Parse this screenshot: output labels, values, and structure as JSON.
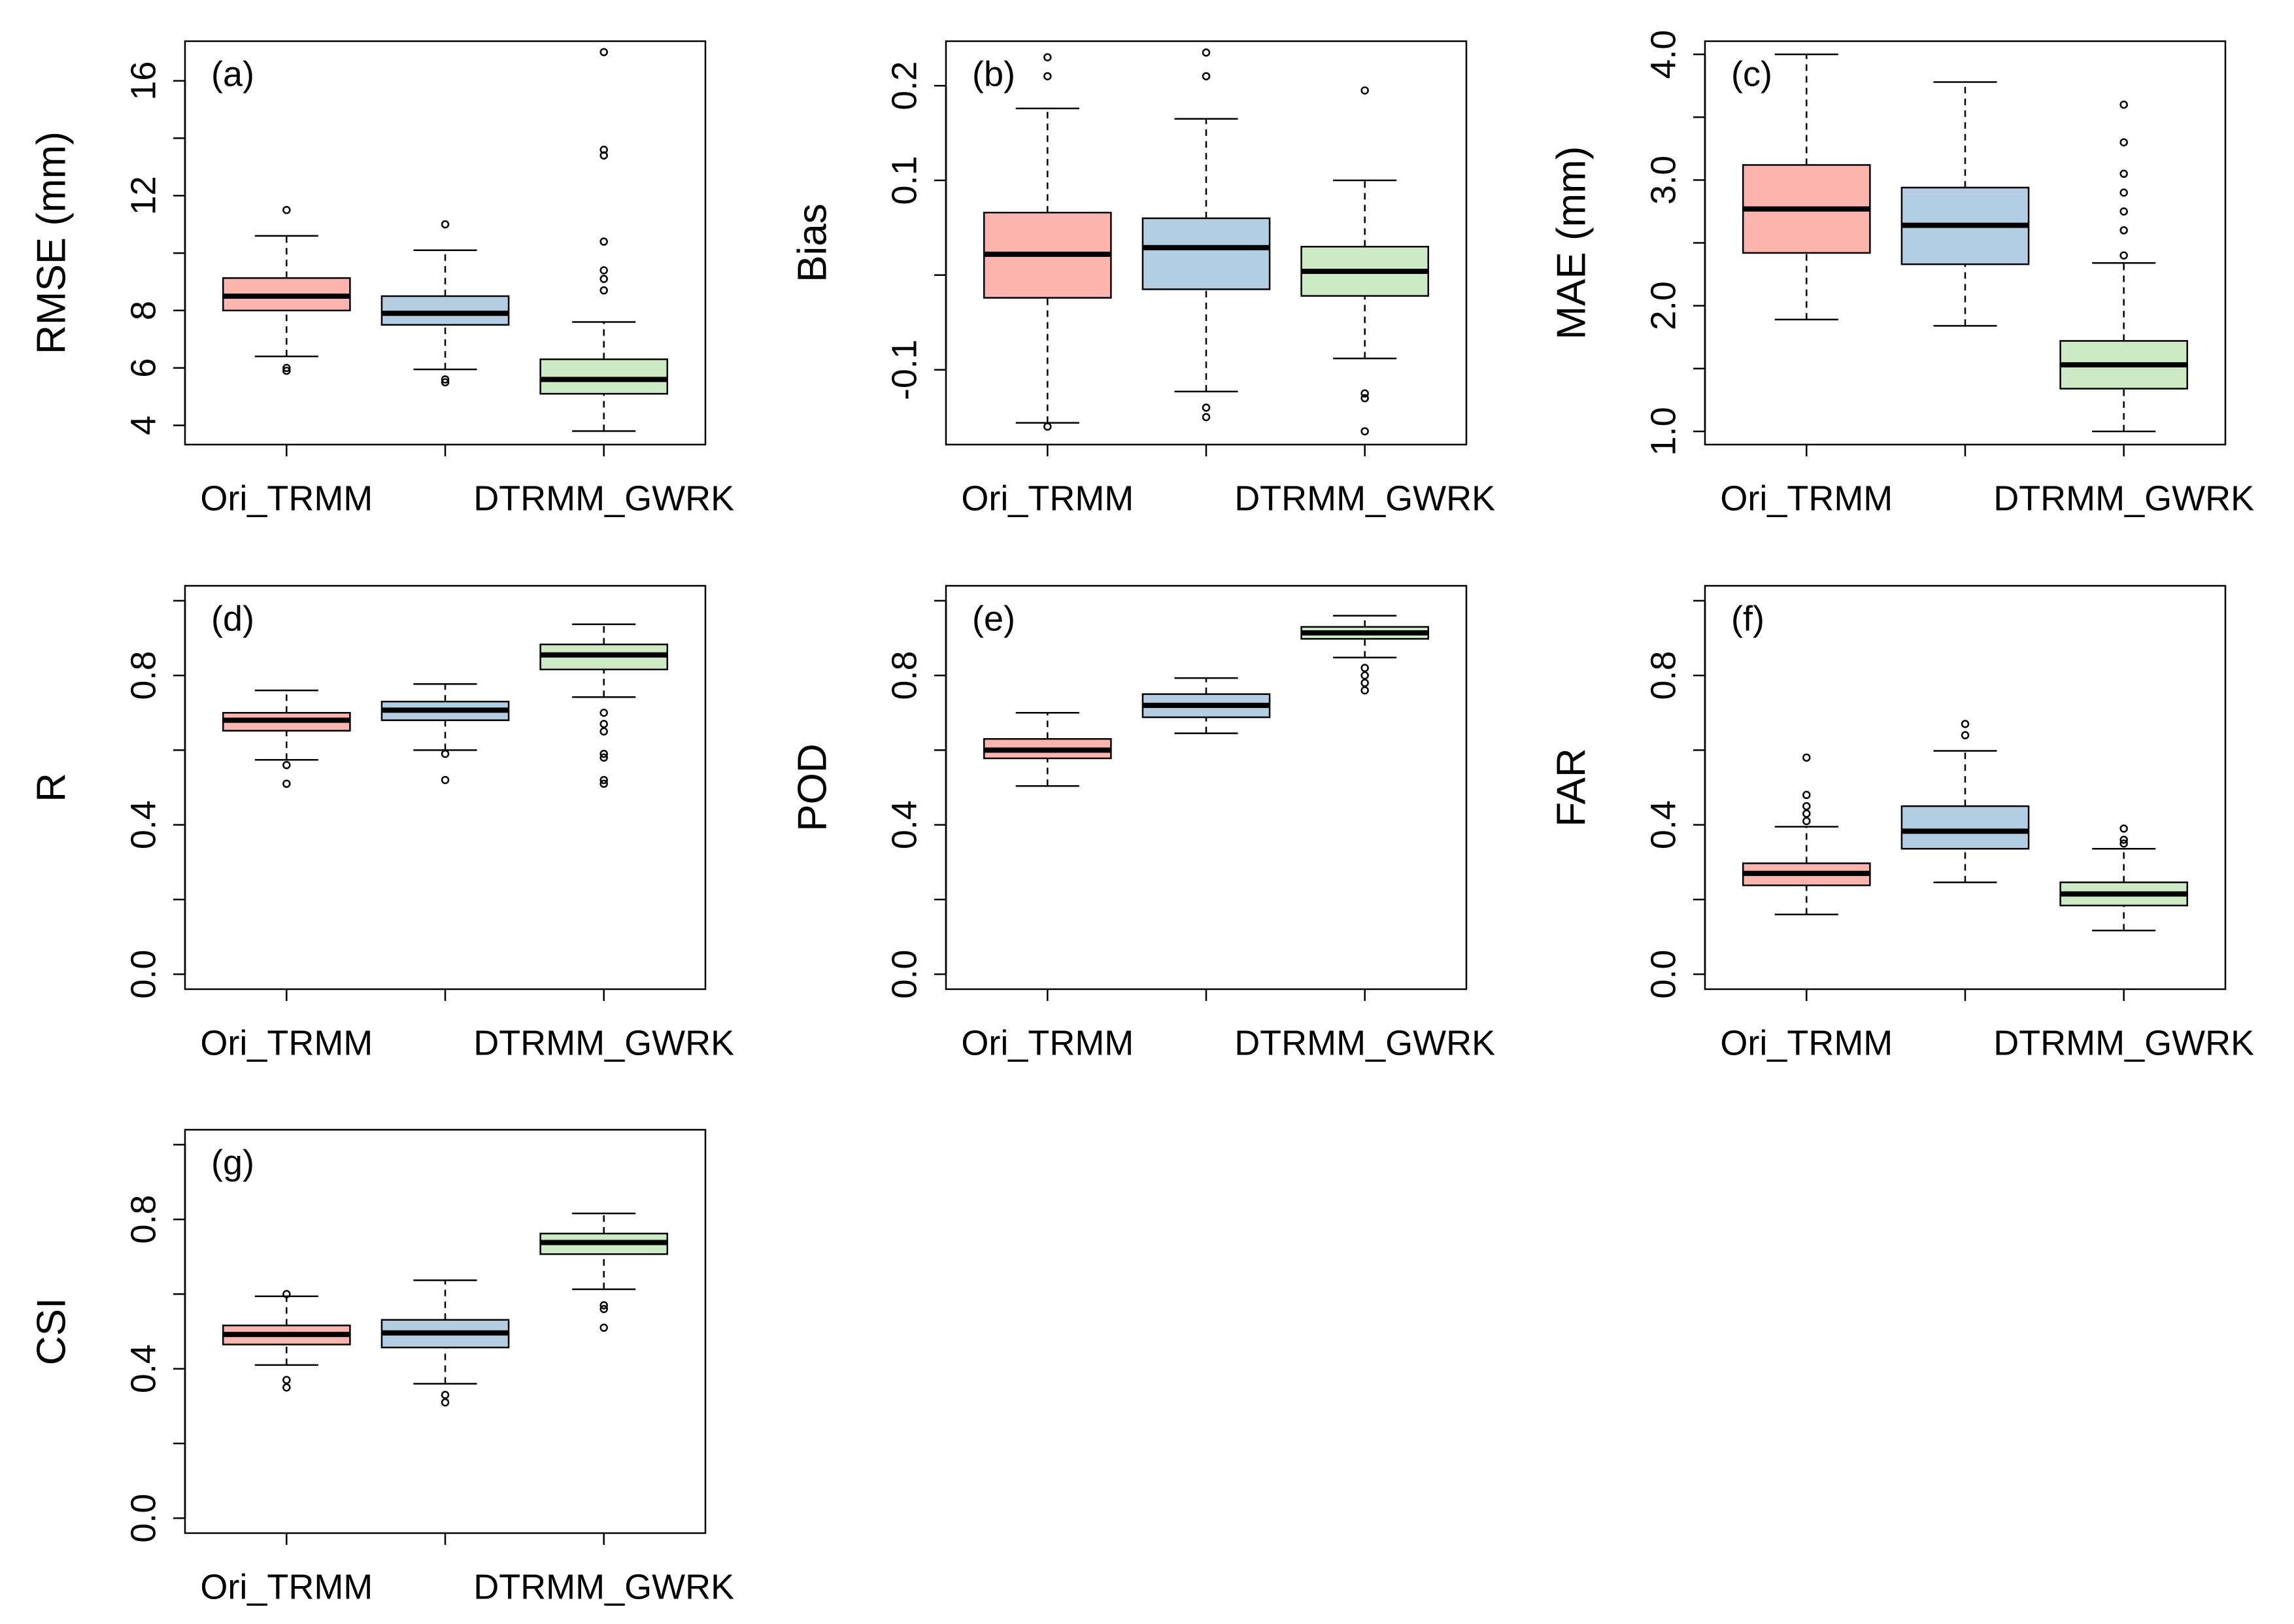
{
  "chart_data": [
    {
      "type": "box",
      "title": "(a)",
      "y_label": "RMSE (mm)",
      "categories": [
        "Ori_TRMM",
        null,
        "DTRMM_GWRK"
      ],
      "colors": [
        "#fbb4ae",
        "#b3cde3",
        "#ccebc5"
      ],
      "ylim": [
        3.33,
        17.38
      ],
      "yticks": [
        4,
        6,
        8,
        {
          "value": 10,
          "label": null
        },
        12,
        {
          "value": 14,
          "label": null
        },
        16
      ],
      "boxes": [
        {
          "whislo": 6.4,
          "q1": 8.0,
          "med": 8.5,
          "q3": 9.13,
          "whishi": 10.6,
          "fliers": [
            11.5,
            6.0,
            5.9
          ]
        },
        {
          "whislo": 5.95,
          "q1": 7.5,
          "med": 7.9,
          "q3": 8.5,
          "whishi": 10.1,
          "fliers": [
            11.0,
            5.6,
            5.5
          ]
        },
        {
          "whislo": 3.8,
          "q1": 5.1,
          "med": 5.6,
          "q3": 6.3,
          "whishi": 7.6,
          "fliers": [
            8.7,
            9.1,
            9.4,
            10.4,
            13.4,
            13.6,
            17.0
          ]
        }
      ]
    },
    {
      "type": "box",
      "title": "(b)",
      "y_label": "Bias",
      "categories": [
        "Ori_TRMM",
        null,
        "DTRMM_GWRK"
      ],
      "colors": [
        "#fbb4ae",
        "#b3cde3",
        "#ccebc5"
      ],
      "ylim": [
        -0.179,
        0.247
      ],
      "yticks": [
        -0.1,
        {
          "value": 0,
          "label": null
        },
        0.1,
        0.2
      ],
      "boxes": [
        {
          "whislo": -0.156,
          "q1": -0.024,
          "med": 0.022,
          "q3": 0.066,
          "whishi": 0.176,
          "fliers": [
            0.23,
            0.21,
            -0.16
          ]
        },
        {
          "whislo": -0.123,
          "q1": -0.015,
          "med": 0.029,
          "q3": 0.06,
          "whishi": 0.165,
          "fliers": [
            0.235,
            0.21,
            -0.14,
            -0.15
          ]
        },
        {
          "whislo": -0.088,
          "q1": -0.022,
          "med": 0.004,
          "q3": 0.03,
          "whishi": 0.1,
          "fliers": [
            0.195,
            -0.125,
            -0.13,
            -0.165
          ]
        }
      ]
    },
    {
      "type": "box",
      "title": "(c)",
      "y_label": "MAE (mm)",
      "categories": [
        "Ori_TRMM",
        null,
        "DTRMM_GWRK"
      ],
      "colors": [
        "#fbb4ae",
        "#b3cde3",
        "#ccebc5"
      ],
      "ylim": [
        0.895,
        4.105
      ],
      "yticks": [
        {
          "value": 1,
          "label": "1.0"
        },
        {
          "value": 1.5,
          "label": null
        },
        {
          "value": 2,
          "label": "2.0"
        },
        {
          "value": 2.5,
          "label": null
        },
        {
          "value": 3,
          "label": "3.0"
        },
        {
          "value": 3.5,
          "label": null
        },
        {
          "value": 4,
          "label": "4.0"
        }
      ],
      "boxes": [
        {
          "whislo": 1.89,
          "q1": 2.42,
          "med": 2.77,
          "q3": 3.12,
          "whishi": 4.0,
          "fliers": []
        },
        {
          "whislo": 1.84,
          "q1": 2.33,
          "med": 2.64,
          "q3": 2.94,
          "whishi": 3.78,
          "fliers": []
        },
        {
          "whislo": 1.0,
          "q1": 1.34,
          "med": 1.53,
          "q3": 1.72,
          "whishi": 2.34,
          "fliers": [
            2.4,
            2.6,
            2.75,
            2.9,
            3.05,
            3.3,
            3.6
          ]
        }
      ]
    },
    {
      "type": "box",
      "title": "(d)",
      "y_label": "R",
      "categories": [
        "Ori_TRMM",
        null,
        "DTRMM_GWRK"
      ],
      "colors": [
        "#fbb4ae",
        "#b3cde3",
        "#ccebc5"
      ],
      "ylim": [
        -0.04,
        1.04
      ],
      "yticks": [
        {
          "value": 0,
          "label": "0.0"
        },
        {
          "value": 0.2,
          "label": null
        },
        0.4,
        {
          "value": 0.6,
          "label": null
        },
        0.8,
        {
          "value": 1,
          "label": null
        }
      ],
      "boxes": [
        {
          "whislo": 0.574,
          "q1": 0.652,
          "med": 0.68,
          "q3": 0.7,
          "whishi": 0.76,
          "fliers": [
            0.56,
            0.51
          ]
        },
        {
          "whislo": 0.6,
          "q1": 0.68,
          "med": 0.707,
          "q3": 0.73,
          "whishi": 0.777,
          "fliers": [
            0.59,
            0.52
          ]
        },
        {
          "whislo": 0.742,
          "q1": 0.816,
          "med": 0.855,
          "q3": 0.883,
          "whishi": 0.937,
          "fliers": [
            0.7,
            0.67,
            0.65,
            0.59,
            0.58,
            0.52,
            0.51
          ]
        }
      ]
    },
    {
      "type": "box",
      "title": "(e)",
      "y_label": "POD",
      "categories": [
        "Ori_TRMM",
        null,
        "DTRMM_GWRK"
      ],
      "colors": [
        "#fbb4ae",
        "#b3cde3",
        "#ccebc5"
      ],
      "ylim": [
        -0.04,
        1.04
      ],
      "yticks": [
        {
          "value": 0,
          "label": "0.0"
        },
        {
          "value": 0.2,
          "label": null
        },
        0.4,
        {
          "value": 0.6,
          "label": null
        },
        0.8,
        {
          "value": 1,
          "label": null
        }
      ],
      "boxes": [
        {
          "whislo": 0.504,
          "q1": 0.578,
          "med": 0.6,
          "q3": 0.63,
          "whishi": 0.7,
          "fliers": []
        },
        {
          "whislo": 0.645,
          "q1": 0.688,
          "med": 0.72,
          "q3": 0.75,
          "whishi": 0.793,
          "fliers": []
        },
        {
          "whislo": 0.848,
          "q1": 0.898,
          "med": 0.914,
          "q3": 0.93,
          "whishi": 0.96,
          "fliers": [
            0.82,
            0.8,
            0.78,
            0.76
          ]
        }
      ]
    },
    {
      "type": "box",
      "title": "(f)",
      "y_label": "FAR",
      "categories": [
        "Ori_TRMM",
        null,
        "DTRMM_GWRK"
      ],
      "colors": [
        "#fbb4ae",
        "#b3cde3",
        "#ccebc5"
      ],
      "ylim": [
        -0.04,
        1.04
      ],
      "yticks": [
        {
          "value": 0,
          "label": "0.0"
        },
        {
          "value": 0.2,
          "label": null
        },
        0.4,
        {
          "value": 0.6,
          "label": null
        },
        0.8,
        {
          "value": 1,
          "label": null
        }
      ],
      "boxes": [
        {
          "whislo": 0.16,
          "q1": 0.238,
          "med": 0.27,
          "q3": 0.297,
          "whishi": 0.395,
          "fliers": [
            0.41,
            0.43,
            0.45,
            0.48,
            0.58
          ]
        },
        {
          "whislo": 0.246,
          "q1": 0.336,
          "med": 0.383,
          "q3": 0.45,
          "whishi": 0.598,
          "fliers": [
            0.64,
            0.67
          ]
        },
        {
          "whislo": 0.117,
          "q1": 0.184,
          "med": 0.215,
          "q3": 0.246,
          "whishi": 0.336,
          "fliers": [
            0.35,
            0.36,
            0.39
          ]
        }
      ]
    },
    {
      "type": "box",
      "title": "(g)",
      "y_label": "CSI",
      "categories": [
        "Ori_TRMM",
        null,
        "DTRMM_GWRK"
      ],
      "colors": [
        "#fbb4ae",
        "#b3cde3",
        "#ccebc5"
      ],
      "ylim": [
        -0.04,
        1.04
      ],
      "yticks": [
        {
          "value": 0,
          "label": "0.0"
        },
        {
          "value": 0.2,
          "label": null
        },
        0.4,
        {
          "value": 0.6,
          "label": null
        },
        0.8,
        {
          "value": 1,
          "label": null
        }
      ],
      "boxes": [
        {
          "whislo": 0.41,
          "q1": 0.465,
          "med": 0.492,
          "q3": 0.516,
          "whishi": 0.594,
          "fliers": [
            0.6,
            0.37,
            0.35
          ]
        },
        {
          "whislo": 0.36,
          "q1": 0.457,
          "med": 0.496,
          "q3": 0.531,
          "whishi": 0.637,
          "fliers": [
            0.33,
            0.31
          ]
        },
        {
          "whislo": 0.613,
          "q1": 0.707,
          "med": 0.738,
          "q3": 0.762,
          "whishi": 0.816,
          "fliers": [
            0.57,
            0.56,
            0.51
          ]
        }
      ]
    }
  ]
}
